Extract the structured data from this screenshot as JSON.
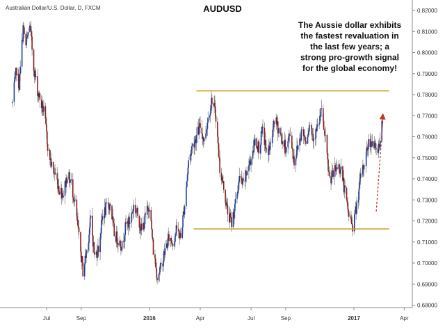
{
  "chart_data": {
    "type": "candlestick",
    "source_title": "Australian Dollar/U.S. Dollar, D, FXCM",
    "title": "AUDUSD",
    "annotation": [
      "The Aussie dollar exhibits",
      "the fastest revaluation in",
      "the last few years; a",
      "strong pro-growth signal",
      "for the global economy!"
    ],
    "ylim": [
      0.675,
      0.825
    ],
    "y_ticks": [
      "0.82000",
      "0.81000",
      "0.80000",
      "0.79000",
      "0.78000",
      "0.77000",
      "0.76000",
      "0.75000",
      "0.74000",
      "0.73000",
      "0.72000",
      "0.71000",
      "0.70000",
      "0.69000",
      "0.68000"
    ],
    "x_range": [
      "2015-05-01",
      "2017-04-15"
    ],
    "x_ticks": [
      {
        "label": "Jul",
        "date": "2015-07-01",
        "bold": false
      },
      {
        "label": "Sep",
        "date": "2015-09-01",
        "bold": false
      },
      {
        "label": "2016",
        "date": "2016-01-01",
        "bold": true
      },
      {
        "label": "Apr",
        "date": "2016-04-01",
        "bold": false
      },
      {
        "label": "Jul",
        "date": "2016-07-01",
        "bold": false
      },
      {
        "label": "Sep",
        "date": "2016-09-01",
        "bold": false
      },
      {
        "label": "2017",
        "date": "2017-01-01",
        "bold": true
      },
      {
        "label": "Apr",
        "date": "2017-04-01",
        "bold": false
      }
    ],
    "levels": [
      {
        "value": 0.7818,
        "from": "2016-03-25",
        "to": "2017-03-05",
        "color": "#c9a227"
      },
      {
        "value": 0.7162,
        "from": "2016-03-20",
        "to": "2017-03-05",
        "color": "#c9a227"
      }
    ],
    "forecast_arrow": {
      "from": [
        "2017-02-10",
        0.7245
      ],
      "to": [
        "2017-02-22",
        0.7712
      ],
      "color": "#c0392b"
    },
    "up_color": "#1c3f9e",
    "down_color": "#8b1a1a",
    "price_path": [
      [
        "2015-05-01",
        0.776
      ],
      [
        "2015-05-08",
        0.792
      ],
      [
        "2015-05-13",
        0.784
      ],
      [
        "2015-05-20",
        0.812
      ],
      [
        "2015-05-25",
        0.803
      ],
      [
        "2015-06-01",
        0.814
      ],
      [
        "2015-06-08",
        0.793
      ],
      [
        "2015-06-15",
        0.782
      ],
      [
        "2015-06-22",
        0.775
      ],
      [
        "2015-06-27",
        0.771
      ],
      [
        "2015-07-03",
        0.756
      ],
      [
        "2015-07-10",
        0.746
      ],
      [
        "2015-07-17",
        0.742
      ],
      [
        "2015-07-24",
        0.735
      ],
      [
        "2015-07-31",
        0.733
      ],
      [
        "2015-08-07",
        0.742
      ],
      [
        "2015-08-14",
        0.738
      ],
      [
        "2015-08-21",
        0.728
      ],
      [
        "2015-08-28",
        0.712
      ],
      [
        "2015-09-04",
        0.696
      ],
      [
        "2015-09-11",
        0.706
      ],
      [
        "2015-09-18",
        0.721
      ],
      [
        "2015-09-25",
        0.703
      ],
      [
        "2015-10-02",
        0.707
      ],
      [
        "2015-10-09",
        0.722
      ],
      [
        "2015-10-16",
        0.726
      ],
      [
        "2015-10-23",
        0.728
      ],
      [
        "2015-10-30",
        0.714
      ],
      [
        "2015-11-06",
        0.711
      ],
      [
        "2015-11-13",
        0.708
      ],
      [
        "2015-11-20",
        0.718
      ],
      [
        "2015-11-27",
        0.72
      ],
      [
        "2015-12-04",
        0.727
      ],
      [
        "2015-12-11",
        0.723
      ],
      [
        "2015-12-18",
        0.715
      ],
      [
        "2015-12-25",
        0.722
      ],
      [
        "2016-01-01",
        0.728
      ],
      [
        "2016-01-08",
        0.706
      ],
      [
        "2016-01-15",
        0.694
      ],
      [
        "2016-01-22",
        0.698
      ],
      [
        "2016-01-29",
        0.706
      ],
      [
        "2016-02-05",
        0.712
      ],
      [
        "2016-02-12",
        0.71
      ],
      [
        "2016-02-19",
        0.716
      ],
      [
        "2016-02-26",
        0.712
      ],
      [
        "2016-03-04",
        0.728
      ],
      [
        "2016-03-11",
        0.748
      ],
      [
        "2016-03-18",
        0.756
      ],
      [
        "2016-03-25",
        0.76
      ],
      [
        "2016-04-01",
        0.765
      ],
      [
        "2016-04-08",
        0.758
      ],
      [
        "2016-04-15",
        0.769
      ],
      [
        "2016-04-22",
        0.778
      ],
      [
        "2016-04-29",
        0.77
      ],
      [
        "2016-05-06",
        0.745
      ],
      [
        "2016-05-13",
        0.736
      ],
      [
        "2016-05-20",
        0.724
      ],
      [
        "2016-05-27",
        0.719
      ],
      [
        "2016-06-03",
        0.728
      ],
      [
        "2016-06-10",
        0.74
      ],
      [
        "2016-06-17",
        0.737
      ],
      [
        "2016-06-24",
        0.744
      ],
      [
        "2016-07-01",
        0.75
      ],
      [
        "2016-07-08",
        0.758
      ],
      [
        "2016-07-15",
        0.755
      ],
      [
        "2016-07-22",
        0.763
      ],
      [
        "2016-07-29",
        0.752
      ],
      [
        "2016-08-05",
        0.756
      ],
      [
        "2016-08-12",
        0.768
      ],
      [
        "2016-08-19",
        0.764
      ],
      [
        "2016-08-26",
        0.758
      ],
      [
        "2016-09-02",
        0.754
      ],
      [
        "2016-09-09",
        0.762
      ],
      [
        "2016-09-16",
        0.748
      ],
      [
        "2016-09-23",
        0.756
      ],
      [
        "2016-09-30",
        0.763
      ],
      [
        "2016-10-07",
        0.759
      ],
      [
        "2016-10-14",
        0.766
      ],
      [
        "2016-10-21",
        0.76
      ],
      [
        "2016-10-28",
        0.764
      ],
      [
        "2016-11-04",
        0.772
      ],
      [
        "2016-11-11",
        0.758
      ],
      [
        "2016-11-18",
        0.74
      ],
      [
        "2016-11-25",
        0.742
      ],
      [
        "2016-12-02",
        0.746
      ],
      [
        "2016-12-09",
        0.745
      ],
      [
        "2016-12-16",
        0.733
      ],
      [
        "2016-12-23",
        0.723
      ],
      [
        "2016-12-30",
        0.718
      ],
      [
        "2017-01-06",
        0.727
      ],
      [
        "2017-01-13",
        0.74
      ],
      [
        "2017-01-20",
        0.748
      ],
      [
        "2017-01-27",
        0.757
      ],
      [
        "2017-02-03",
        0.758
      ],
      [
        "2017-02-10",
        0.753
      ],
      [
        "2017-02-17",
        0.758
      ],
      [
        "2017-02-21",
        0.767
      ]
    ]
  }
}
